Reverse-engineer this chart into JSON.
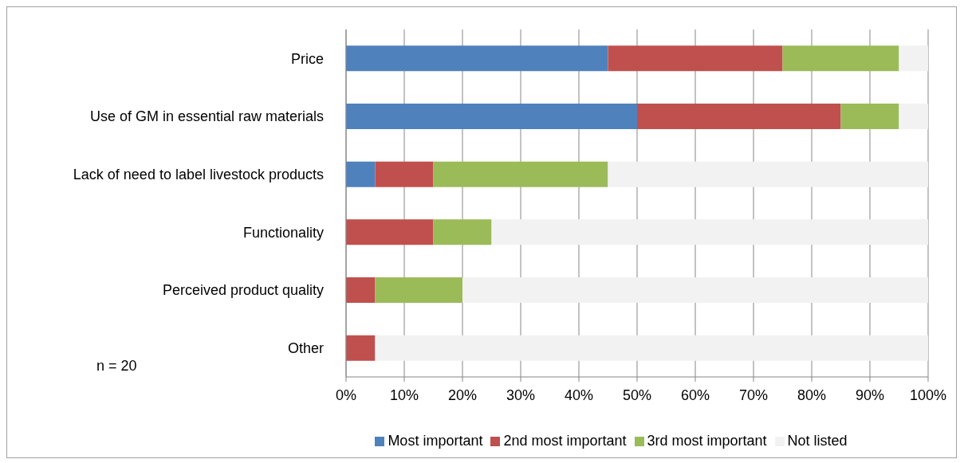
{
  "chart_data": {
    "type": "bar",
    "orientation": "horizontal",
    "stacked": true,
    "categories": [
      "Price",
      "Use of GM in essential raw materials",
      "Lack of need to label livestock products",
      "Functionality",
      "Perceived product quality",
      "Other"
    ],
    "series": [
      {
        "name": "Most important",
        "color": "#4f81bd",
        "values": [
          45,
          50,
          5,
          0,
          0,
          0
        ]
      },
      {
        "name": "2nd most important",
        "color": "#c0504d",
        "values": [
          30,
          35,
          10,
          15,
          5,
          5
        ]
      },
      {
        "name": "3rd most important",
        "color": "#9bbb59",
        "values": [
          20,
          10,
          30,
          10,
          15,
          0
        ]
      },
      {
        "name": "Not listed",
        "color": "#f2f2f2",
        "values": [
          5,
          5,
          55,
          75,
          80,
          95
        ]
      }
    ],
    "xlim": [
      0,
      100
    ],
    "xticks": [
      {
        "value": 0,
        "label": "0%"
      },
      {
        "value": 10,
        "label": "10%"
      },
      {
        "value": 20,
        "label": "20%"
      },
      {
        "value": 30,
        "label": "30%"
      },
      {
        "value": 40,
        "label": "40%"
      },
      {
        "value": 50,
        "label": "50%"
      },
      {
        "value": 60,
        "label": "60%"
      },
      {
        "value": 70,
        "label": "70%"
      },
      {
        "value": 80,
        "label": "80%"
      },
      {
        "value": 90,
        "label": "90%"
      },
      {
        "value": 100,
        "label": "100%"
      }
    ],
    "grid": "x",
    "legend": "bottom",
    "annotations": [
      "n = 20"
    ]
  }
}
